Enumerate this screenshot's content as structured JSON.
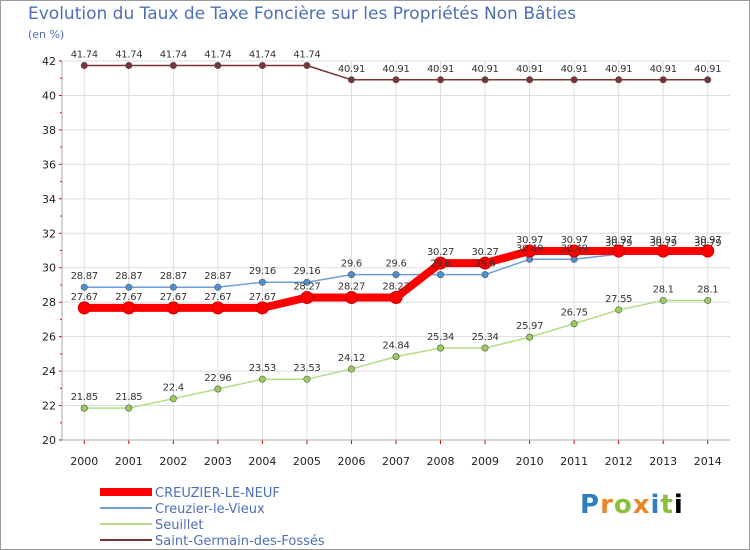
{
  "title": "Evolution du Taux de Taxe Foncière sur les Propriétés Non Bâties",
  "unit": "(en %)",
  "logo_text": "Proxiti",
  "chart_data": {
    "type": "line",
    "title": "Evolution du Taux de Taxe Foncière sur les Propriétés Non Bâties",
    "ylabel": "(en %)",
    "xlabel": "",
    "x": [
      2000,
      2001,
      2002,
      2003,
      2004,
      2005,
      2006,
      2007,
      2008,
      2009,
      2010,
      2011,
      2012,
      2013,
      2014
    ],
    "ylim": [
      20,
      42
    ],
    "yticks": [
      20,
      22,
      24,
      26,
      28,
      30,
      32,
      34,
      36,
      38,
      40,
      42
    ],
    "grid": true,
    "legend_position": "bottom-left",
    "series": [
      {
        "name": "CREUZIER-LE-NEUF",
        "color": "#ff0000",
        "width": 8,
        "values": [
          27.67,
          27.67,
          27.67,
          27.67,
          27.67,
          28.27,
          28.27,
          28.27,
          30.27,
          30.27,
          30.97,
          30.97,
          30.97,
          30.97,
          30.97
        ]
      },
      {
        "name": "Creuzier-le-Vieux",
        "color": "#6f9fd8",
        "width": 1.5,
        "values": [
          28.87,
          28.87,
          28.87,
          28.87,
          29.16,
          29.16,
          29.6,
          29.6,
          29.6,
          29.6,
          30.49,
          30.49,
          30.79,
          30.79,
          30.79
        ]
      },
      {
        "name": "Seuillet",
        "color": "#b5dd87",
        "width": 1.5,
        "values": [
          21.85,
          21.85,
          22.4,
          22.96,
          23.53,
          23.53,
          24.12,
          24.84,
          25.34,
          25.34,
          25.97,
          26.75,
          27.55,
          28.1,
          28.1
        ]
      },
      {
        "name": "Saint-Germain-des-Fossés",
        "color": "#7b3434",
        "width": 1.5,
        "values": [
          41.74,
          41.74,
          41.74,
          41.74,
          41.74,
          41.74,
          40.91,
          40.91,
          40.91,
          40.91,
          40.91,
          40.91,
          40.91,
          40.91,
          40.91
        ]
      }
    ]
  }
}
